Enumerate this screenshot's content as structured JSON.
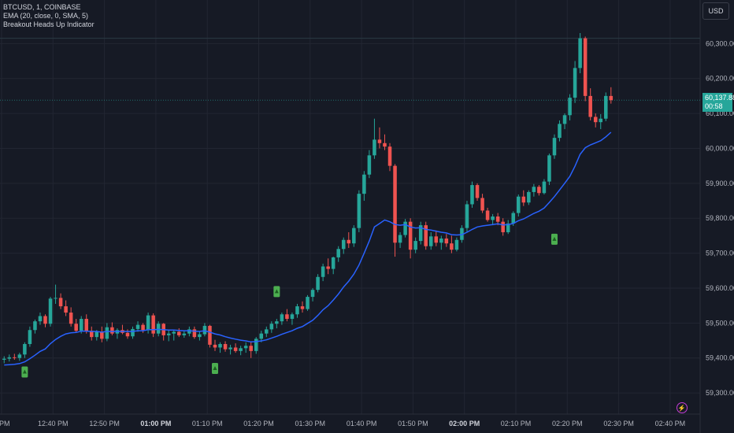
{
  "legend": {
    "symbol": "BTCUSD, 1, COINBASE",
    "ema": "EMA (20, close, 0, SMA, 5)",
    "indicator": "Breakout Heads Up Indicator"
  },
  "currency_button": "USD",
  "last_price": {
    "price": "60,137.88",
    "countdown": "00:58"
  },
  "bolt_icon": "lightning-icon",
  "colors": {
    "up": "#26a69a",
    "down": "#ef5350",
    "ema": "#2962ff",
    "signal": "#4caf50",
    "background": "#161a25"
  },
  "chart_data": {
    "type": "candlestick",
    "title": "BTCUSD, 1, COINBASE",
    "y_ticks": [
      "60,300.00",
      "60,200.00",
      "60,100.00",
      "60,000.00",
      "59,900.00",
      "59,800.00",
      "59,700.00",
      "59,600.00",
      "59,500.00",
      "59,400.00",
      "59,300.00"
    ],
    "x_ticks": [
      "0 PM",
      "12:40 PM",
      "12:50 PM",
      "01:00 PM",
      "01:10 PM",
      "01:20 PM",
      "01:30 PM",
      "01:40 PM",
      "01:50 PM",
      "02:00 PM",
      "02:10 PM",
      "02:20 PM",
      "02:30 PM",
      "02:40 PM"
    ],
    "bold_x_ticks": [
      "01:00 PM",
      "02:00 PM"
    ],
    "ylim": [
      59280,
      60330
    ],
    "first_bar_index": 0,
    "bars_per_tick": 10,
    "ohlc": [
      [
        59395,
        59405,
        59385,
        59398
      ],
      [
        59398,
        59410,
        59390,
        59402
      ],
      [
        59402,
        59412,
        59395,
        59400
      ],
      [
        59400,
        59415,
        59392,
        59410
      ],
      [
        59410,
        59445,
        59400,
        59440
      ],
      [
        59440,
        59490,
        59432,
        59480
      ],
      [
        59480,
        59510,
        59470,
        59505
      ],
      [
        59505,
        59530,
        59495,
        59520
      ],
      [
        59520,
        59525,
        59488,
        59498
      ],
      [
        59498,
        59575,
        59490,
        59570
      ],
      [
        59570,
        59610,
        59555,
        59572
      ],
      [
        59572,
        59585,
        59540,
        59548
      ],
      [
        59548,
        59565,
        59520,
        59530
      ],
      [
        59530,
        59545,
        59490,
        59498
      ],
      [
        59498,
        59512,
        59472,
        59478
      ],
      [
        59478,
        59520,
        59470,
        59512
      ],
      [
        59512,
        59525,
        59470,
        59478
      ],
      [
        59478,
        59490,
        59450,
        59460
      ],
      [
        59460,
        59480,
        59450,
        59475
      ],
      [
        59475,
        59490,
        59445,
        59455
      ],
      [
        59455,
        59500,
        59448,
        59488
      ],
      [
        59488,
        59502,
        59465,
        59470
      ],
      [
        59470,
        59485,
        59455,
        59480
      ],
      [
        59480,
        59495,
        59468,
        59472
      ],
      [
        59472,
        59482,
        59455,
        59462
      ],
      [
        59462,
        59490,
        59455,
        59483
      ],
      [
        59483,
        59505,
        59475,
        59495
      ],
      [
        59495,
        59500,
        59472,
        59480
      ],
      [
        59480,
        59530,
        59470,
        59522
      ],
      [
        59522,
        59528,
        59460,
        59470
      ],
      [
        59470,
        59505,
        59462,
        59498
      ],
      [
        59498,
        59500,
        59450,
        59465
      ],
      [
        59465,
        59480,
        59448,
        59470
      ],
      [
        59470,
        59480,
        59450,
        59475
      ],
      [
        59475,
        59485,
        59460,
        59465
      ],
      [
        59465,
        59478,
        59458,
        59470
      ],
      [
        59470,
        59490,
        59462,
        59482
      ],
      [
        59482,
        59490,
        59455,
        59460
      ],
      [
        59460,
        59475,
        59450,
        59468
      ],
      [
        59468,
        59500,
        59462,
        59492
      ],
      [
        59492,
        59495,
        59430,
        59438
      ],
      [
        59438,
        59452,
        59420,
        59430
      ],
      [
        59430,
        59445,
        59415,
        59440
      ],
      [
        59440,
        59448,
        59418,
        59425
      ],
      [
        59425,
        59438,
        59410,
        59430
      ],
      [
        59430,
        59442,
        59415,
        59420
      ],
      [
        59420,
        59435,
        59408,
        59428
      ],
      [
        59428,
        59445,
        59415,
        59435
      ],
      [
        59435,
        59448,
        59400,
        59420
      ],
      [
        59420,
        59460,
        59412,
        59455
      ],
      [
        59455,
        59478,
        59445,
        59470
      ],
      [
        59470,
        59490,
        59460,
        59482
      ],
      [
        59482,
        59505,
        59472,
        59498
      ],
      [
        59498,
        59512,
        59485,
        59505
      ],
      [
        59505,
        59530,
        59495,
        59525
      ],
      [
        59525,
        59540,
        59505,
        59512
      ],
      [
        59512,
        59530,
        59495,
        59525
      ],
      [
        59525,
        59555,
        59515,
        59548
      ],
      [
        59548,
        59562,
        59530,
        59540
      ],
      [
        59540,
        59580,
        59535,
        59575
      ],
      [
        59575,
        59600,
        59562,
        59595
      ],
      [
        59595,
        59640,
        59588,
        59632
      ],
      [
        59632,
        59670,
        59620,
        59662
      ],
      [
        59662,
        59685,
        59640,
        59655
      ],
      [
        59655,
        59690,
        59640,
        59688
      ],
      [
        59688,
        59720,
        59675,
        59712
      ],
      [
        59712,
        59745,
        59698,
        59738
      ],
      [
        59738,
        59760,
        59715,
        59728
      ],
      [
        59728,
        59780,
        59718,
        59772
      ],
      [
        59772,
        59880,
        59760,
        59870
      ],
      [
        59870,
        59935,
        59850,
        59925
      ],
      [
        59925,
        59995,
        59915,
        59980
      ],
      [
        59980,
        60085,
        59970,
        60025
      ],
      [
        60025,
        60060,
        60000,
        60015
      ],
      [
        60015,
        60040,
        59995,
        60005
      ],
      [
        60005,
        60015,
        59935,
        59950
      ],
      [
        59950,
        59955,
        59690,
        59730
      ],
      [
        59730,
        59760,
        59715,
        59752
      ],
      [
        59752,
        59798,
        59745,
        59790
      ],
      [
        59790,
        59800,
        59685,
        59710
      ],
      [
        59710,
        59745,
        59700,
        59735
      ],
      [
        59735,
        59790,
        59725,
        59780
      ],
      [
        59780,
        59790,
        59710,
        59720
      ],
      [
        59720,
        59760,
        59710,
        59748
      ],
      [
        59748,
        59765,
        59720,
        59730
      ],
      [
        59730,
        59750,
        59710,
        59742
      ],
      [
        59742,
        59755,
        59718,
        59728
      ],
      [
        59728,
        59750,
        59700,
        59710
      ],
      [
        59710,
        59745,
        59705,
        59738
      ],
      [
        59738,
        59780,
        59730,
        59772
      ],
      [
        59772,
        59850,
        59760,
        59840
      ],
      [
        59840,
        59905,
        59830,
        59895
      ],
      [
        59895,
        59900,
        59850,
        59858
      ],
      [
        59858,
        59870,
        59815,
        59822
      ],
      [
        59822,
        59830,
        59790,
        59795
      ],
      [
        59795,
        59812,
        59780,
        59805
      ],
      [
        59805,
        59815,
        59780,
        59790
      ],
      [
        59790,
        59800,
        59750,
        59760
      ],
      [
        59760,
        59795,
        59755,
        59785
      ],
      [
        59785,
        59820,
        59778,
        59815
      ],
      [
        59815,
        59868,
        59805,
        59862
      ],
      [
        59862,
        59880,
        59835,
        59845
      ],
      [
        59845,
        59880,
        59838,
        59875
      ],
      [
        59875,
        59898,
        59862,
        59890
      ],
      [
        59890,
        59895,
        59865,
        59872
      ],
      [
        59872,
        59912,
        59868,
        59905
      ],
      [
        59905,
        59985,
        59895,
        59980
      ],
      [
        59980,
        60040,
        59970,
        60030
      ],
      [
        60030,
        60080,
        60020,
        60070
      ],
      [
        60070,
        60100,
        60055,
        60095
      ],
      [
        60095,
        60155,
        60080,
        60145
      ],
      [
        60145,
        60250,
        60130,
        60230
      ],
      [
        60230,
        60330,
        60215,
        60315
      ],
      [
        60315,
        60320,
        60135,
        60150
      ],
      [
        60150,
        60172,
        60080,
        60090
      ],
      [
        60090,
        60100,
        60060,
        60075
      ],
      [
        60075,
        60098,
        60055,
        60085
      ],
      [
        60085,
        60160,
        60078,
        60150
      ],
      [
        60150,
        60175,
        60128,
        60138
      ]
    ],
    "ema": [
      59380,
      59381,
      59382,
      59384,
      59389,
      59398,
      59408,
      59419,
      59426,
      59441,
      59453,
      59462,
      59469,
      59472,
      59473,
      59477,
      59477,
      59476,
      59476,
      59474,
      59476,
      59476,
      59476,
      59476,
      59476,
      59476,
      59478,
      59478,
      59481,
      59481,
      59482,
      59481,
      59480,
      59480,
      59479,
      59478,
      59478,
      59477,
      59476,
      59478,
      59474,
      59469,
      59466,
      59461,
      59457,
      59454,
      59451,
      59449,
      59446,
      59447,
      59449,
      59452,
      59457,
      59462,
      59468,
      59473,
      59478,
      59485,
      59490,
      59499,
      59508,
      59522,
      59538,
      59550,
      59566,
      59583,
      59603,
      59620,
      59640,
      59666,
      59700,
      59735,
      59775,
      59785,
      59795,
      59790,
      59782,
      59780,
      59782,
      59775,
      59772,
      59773,
      59768,
      59766,
      59763,
      59760,
      59758,
      59753,
      59752,
      59753,
      59760,
      59768,
      59775,
      59778,
      59780,
      59782,
      59784,
      59781,
      59782,
      59785,
      59793,
      59798,
      59806,
      59814,
      59820,
      59829,
      59845,
      59862,
      59881,
      59900,
      59920,
      59949,
      59983,
      60002,
      60010,
      60016,
      60022,
      60033,
      60046
    ],
    "signals": [
      {
        "bar": 4,
        "price": 59360
      },
      {
        "bar": 41,
        "price": 59370
      },
      {
        "bar": 53,
        "price": 59590
      },
      {
        "bar": 107,
        "price": 59740
      }
    ]
  }
}
